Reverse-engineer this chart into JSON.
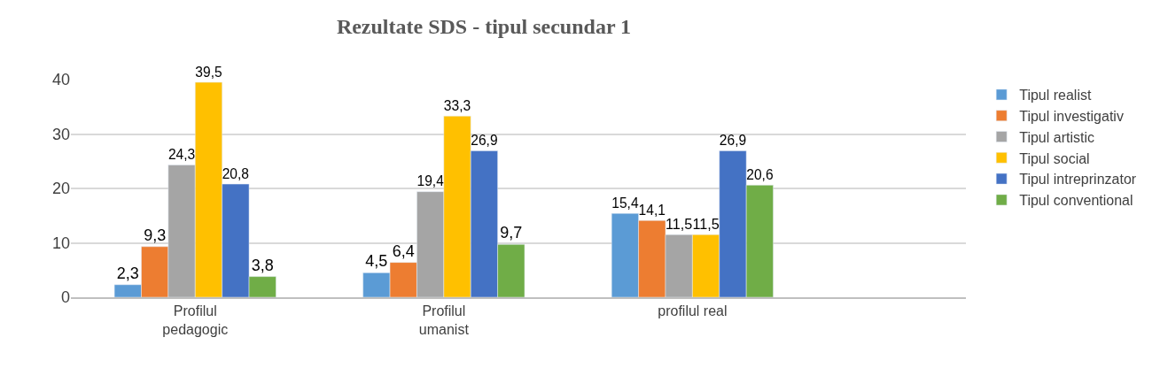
{
  "chart_data": {
    "type": "bar",
    "title": "Rezultate SDS - tipul secundar 1",
    "categories": [
      "Profilul\npedagogic",
      "Profilul\numanist",
      "profilul real"
    ],
    "series": [
      {
        "name": "Tipul realist",
        "color": "#5b9bd5",
        "values": [
          2.3,
          4.5,
          15.4
        ],
        "value_labels": [
          "2,3",
          "4,5",
          "15,4"
        ]
      },
      {
        "name": "Tipul investigativ",
        "color": "#ed7d31",
        "values": [
          9.3,
          6.4,
          14.1
        ],
        "value_labels": [
          "9,3",
          "6,4",
          "14,1"
        ]
      },
      {
        "name": "Tipul artistic",
        "color": "#a5a5a5",
        "values": [
          24.3,
          19.4,
          11.5
        ],
        "value_labels": [
          "24,3",
          "19,4",
          "11,5"
        ]
      },
      {
        "name": "Tipul social",
        "color": "#ffc000",
        "values": [
          39.5,
          33.3,
          11.5
        ],
        "value_labels": [
          "39,5",
          "33,3",
          "11,5"
        ]
      },
      {
        "name": "Tipul intreprinzator",
        "color": "#4472c4",
        "values": [
          20.8,
          26.9,
          26.9
        ],
        "value_labels": [
          "20,8",
          "26,9",
          "26,9"
        ]
      },
      {
        "name": "Tipul conventional",
        "color": "#70ad47",
        "values": [
          3.8,
          9.7,
          20.6
        ],
        "value_labels": [
          "3,8",
          "9,7",
          "20,6"
        ]
      }
    ],
    "ylim": [
      0,
      40
    ],
    "yticks": [
      0,
      10,
      20,
      30,
      40
    ],
    "grid": "y",
    "legend": "right"
  }
}
